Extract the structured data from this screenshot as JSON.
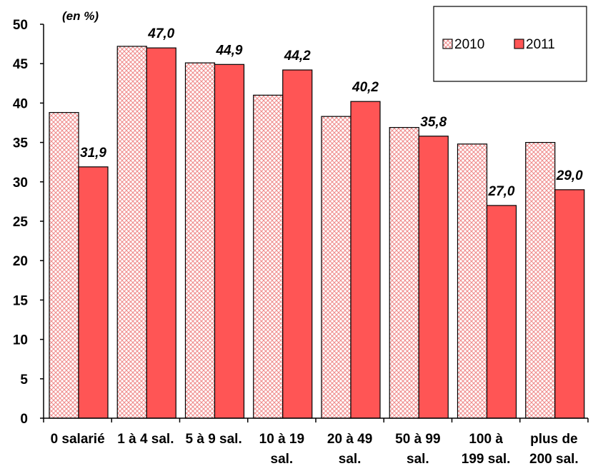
{
  "chart_data": {
    "type": "bar",
    "unit_label": "(en %)",
    "categories": [
      [
        "0 salarié"
      ],
      [
        "1 à 4 sal."
      ],
      [
        "5 à 9 sal."
      ],
      [
        "10 à 19",
        "sal."
      ],
      [
        "20 à 49",
        "sal."
      ],
      [
        "50 à 99",
        "sal."
      ],
      [
        "100 à",
        "199 sal."
      ],
      [
        "plus de",
        "200 sal."
      ]
    ],
    "series": [
      {
        "name": "2010",
        "values": [
          38.8,
          47.2,
          45.1,
          41.0,
          38.3,
          36.9,
          34.8,
          35.0
        ],
        "pattern": "crosshatch",
        "color": "#f4b8b8"
      },
      {
        "name": "2011",
        "values": [
          31.9,
          47.0,
          44.9,
          44.2,
          40.2,
          35.8,
          27.0,
          29.0
        ],
        "color": "#ff5555"
      }
    ],
    "data_labels_series": "2011",
    "data_labels": [
      "31,9",
      "47,0",
      "44,9",
      "44,2",
      "40,2",
      "35,8",
      "27,0",
      "29,0"
    ],
    "y_ticks": [
      "0",
      "5",
      "10",
      "15",
      "20",
      "25",
      "30",
      "35",
      "40",
      "45",
      "50"
    ],
    "ylim": [
      0,
      50
    ],
    "grid": false,
    "legend_position": "top-right"
  }
}
